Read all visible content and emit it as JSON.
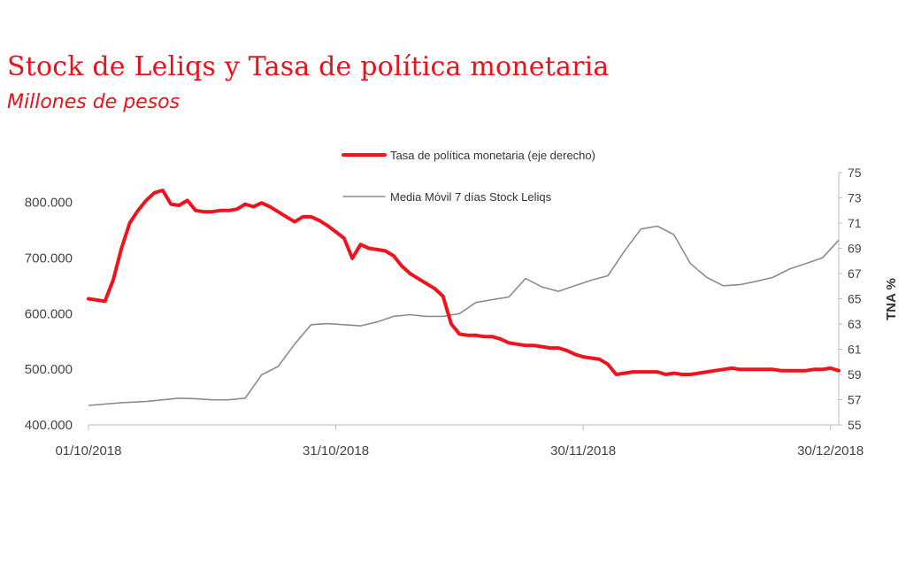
{
  "title": "Stock de Leliqs y Tasa de política monetaria",
  "subtitle": "Millones de pesos",
  "colors": {
    "rate": "#f0131c",
    "stock": "#8c8c8c",
    "title": "#e8131a"
  },
  "chart_data": {
    "type": "line",
    "title": "Stock de Leliqs y Tasa de política monetaria",
    "subtitle": "Millones de pesos",
    "x_range": [
      0,
      91
    ],
    "x_ticks": [
      {
        "x": 0,
        "label": "01/10/2018"
      },
      {
        "x": 30,
        "label": "31/10/2018"
      },
      {
        "x": 60,
        "label": "30/11/2018"
      },
      {
        "x": 90,
        "label": "30/12/2018"
      }
    ],
    "y_left": {
      "min": 400000,
      "max": 800000,
      "step": 100000,
      "tick_labels": [
        "400.000",
        "500.000",
        "600.000",
        "700.000",
        "800.000"
      ]
    },
    "y_right": {
      "label": "TNA %",
      "min": 55,
      "max": 75,
      "step": 2,
      "tick_labels": [
        "55",
        "57",
        "59",
        "61",
        "63",
        "65",
        "67",
        "69",
        "71",
        "73",
        "75"
      ]
    },
    "legend_position": "top-center",
    "series": [
      {
        "name": "Tasa de política monetaria (eje derecho)",
        "axis": "right",
        "x": [
          0,
          1,
          2,
          3,
          4,
          5,
          6,
          7,
          8,
          9,
          10,
          11,
          12,
          13,
          14,
          15,
          16,
          17,
          18,
          19,
          20,
          21,
          22,
          23,
          24,
          25,
          26,
          27,
          28,
          29,
          30,
          31,
          32,
          33,
          34,
          35,
          36,
          37,
          38,
          39,
          40,
          41,
          42,
          43,
          44,
          45,
          46,
          47,
          48,
          49,
          50,
          51,
          52,
          53,
          54,
          55,
          56,
          57,
          58,
          59,
          60,
          61,
          62,
          63,
          64,
          65,
          66,
          67,
          68,
          69,
          70,
          71,
          72,
          73,
          74,
          75,
          76,
          77,
          78,
          79,
          80,
          81,
          82,
          83,
          84,
          85,
          86,
          87,
          88,
          89,
          90,
          91
        ],
        "values": [
          65.0,
          64.9,
          64.8,
          66.5,
          69.0,
          71.0,
          72.0,
          72.8,
          73.4,
          73.6,
          72.5,
          72.4,
          72.8,
          72.0,
          71.9,
          71.9,
          72.0,
          72.0,
          72.1,
          72.5,
          72.3,
          72.6,
          72.3,
          71.9,
          71.5,
          71.1,
          71.5,
          71.5,
          71.2,
          70.8,
          70.3,
          69.8,
          68.2,
          69.3,
          69.0,
          68.9,
          68.8,
          68.4,
          67.6,
          67.0,
          66.6,
          66.2,
          65.8,
          65.2,
          63.0,
          62.2,
          62.1,
          62.1,
          62.0,
          62.0,
          61.8,
          61.5,
          61.4,
          61.3,
          61.3,
          61.2,
          61.1,
          61.1,
          60.9,
          60.6,
          60.4,
          60.3,
          60.2,
          59.8,
          59.0,
          59.1,
          59.2,
          59.2,
          59.2,
          59.2,
          59.0,
          59.1,
          59.0,
          59.0,
          59.1,
          59.2,
          59.3,
          59.4,
          59.5,
          59.4,
          59.4,
          59.4,
          59.4,
          59.4,
          59.3,
          59.3,
          59.3,
          59.3,
          59.4,
          59.4,
          59.5,
          59.3
        ]
      },
      {
        "name": "Media Móvil 7 días Stock Leliqs",
        "axis": "left",
        "x": [
          0,
          4,
          7,
          9,
          11,
          13,
          15,
          17,
          19,
          21,
          23,
          25,
          27,
          29,
          31,
          33,
          35,
          37,
          39,
          41,
          43,
          45,
          47,
          49,
          51,
          53,
          55,
          57,
          59,
          61,
          63,
          65,
          67,
          69,
          71,
          73,
          75,
          77,
          79,
          81,
          83,
          85,
          87,
          89,
          91
        ],
        "values": [
          435000,
          440000,
          442000,
          445000,
          448000,
          447000,
          445000,
          445000,
          448000,
          490000,
          505000,
          545000,
          580000,
          582000,
          580000,
          578000,
          585000,
          595000,
          598000,
          595000,
          595000,
          600000,
          620000,
          625000,
          630000,
          663000,
          648000,
          640000,
          650000,
          660000,
          668000,
          712000,
          752000,
          757000,
          742000,
          690000,
          665000,
          650000,
          652000,
          658000,
          665000,
          680000,
          690000,
          700000,
          732000
        ]
      }
    ]
  }
}
